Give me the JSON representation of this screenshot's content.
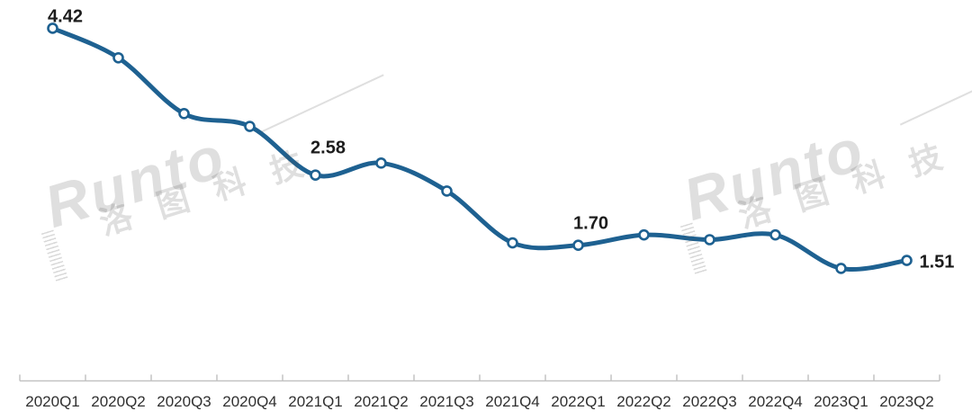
{
  "watermark": {
    "brand": "Runto",
    "brand_cn": "洛图科技"
  },
  "chart_data": {
    "type": "line",
    "categories": [
      "2020Q1",
      "2020Q2",
      "2020Q3",
      "2020Q4",
      "2021Q1",
      "2021Q2",
      "2021Q3",
      "2021Q4",
      "2022Q1",
      "2022Q2",
      "2022Q3",
      "2022Q4",
      "2023Q1",
      "2023Q2"
    ],
    "values": [
      4.42,
      4.05,
      3.35,
      3.19,
      2.58,
      2.73,
      2.38,
      1.73,
      1.7,
      1.83,
      1.77,
      1.83,
      1.41,
      1.51
    ],
    "labeled_points": [
      {
        "index": 0,
        "text": "4.42",
        "position": "above",
        "dy": -7
      },
      {
        "index": 4,
        "text": "2.58",
        "position": "above",
        "dy": -24
      },
      {
        "index": 8,
        "text": "1.70",
        "position": "above",
        "dy": -18
      },
      {
        "index": 13,
        "text": "1.51",
        "position": "right",
        "dy": 8
      }
    ],
    "title": "",
    "xlabel": "",
    "ylabel": "",
    "ylim": [
      0,
      4.8
    ],
    "grid": false,
    "legend": "none",
    "smooth": true,
    "markers": true,
    "colors": {
      "line": "#1e6191",
      "marker_fill": "#ffffff",
      "marker_stroke": "#1e6191",
      "axis": "#c3c3c3",
      "data_label": "#1c1c1c",
      "tick_label": "#303030"
    }
  }
}
